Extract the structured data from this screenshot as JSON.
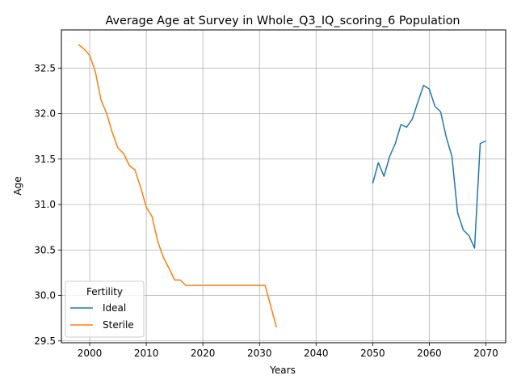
{
  "chart_data": {
    "type": "line",
    "title": "Average Age at Survey in Whole_Q3_IQ_scoring_6 Population",
    "xlabel": "Years",
    "ylabel": "Age",
    "xlim": [
      1995,
      2073.5
    ],
    "ylim": [
      29.48,
      32.92
    ],
    "xticks": [
      2000,
      2010,
      2020,
      2030,
      2040,
      2050,
      2060,
      2070
    ],
    "yticks": [
      29.5,
      30.0,
      30.5,
      31.0,
      31.5,
      32.0,
      32.5
    ],
    "grid": true,
    "legend": {
      "title": "Fertility",
      "placement": "lower-left"
    },
    "series": [
      {
        "name": "Ideal",
        "color": "#1f77b4",
        "x": [
          2050,
          2051,
          2052,
          2053,
          2054,
          2055,
          2056,
          2057,
          2058,
          2059,
          2060,
          2061,
          2062,
          2063,
          2064,
          2065,
          2066,
          2067,
          2068,
          2069,
          2070
        ],
        "y": [
          31.23,
          31.46,
          31.31,
          31.53,
          31.67,
          31.88,
          31.85,
          31.94,
          32.13,
          32.31,
          32.27,
          32.08,
          32.02,
          31.74,
          31.53,
          30.91,
          30.72,
          30.66,
          30.52,
          31.67,
          31.7
        ]
      },
      {
        "name": "Sterile",
        "color": "#ff7f0e",
        "x": [
          1998,
          1999,
          2000,
          2001,
          2002,
          2003,
          2004,
          2005,
          2006,
          2007,
          2008,
          2009,
          2010,
          2011,
          2012,
          2013,
          2014,
          2015,
          2016,
          2017,
          2018,
          2019,
          2020,
          2021,
          2022,
          2023,
          2024,
          2025,
          2026,
          2027,
          2028,
          2029,
          2030,
          2031,
          2032,
          2033
        ],
        "y": [
          32.76,
          32.71,
          32.64,
          32.46,
          32.15,
          32.0,
          31.79,
          31.62,
          31.56,
          31.43,
          31.38,
          31.19,
          30.97,
          30.87,
          30.6,
          30.42,
          30.3,
          30.17,
          30.17,
          30.11,
          30.11,
          30.11,
          30.11,
          30.11,
          30.11,
          30.11,
          30.11,
          30.11,
          30.11,
          30.11,
          30.11,
          30.11,
          30.11,
          30.11,
          29.88,
          29.65
        ]
      }
    ]
  }
}
